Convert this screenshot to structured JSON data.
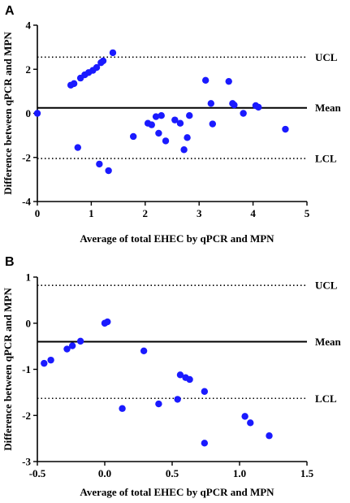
{
  "chart_data": [
    {
      "type": "scatter",
      "panel": "A",
      "xlabel": "Average of total EHEC by qPCR and MPN",
      "ylabel": "Difference between qPCR and MPN",
      "xlim": [
        0,
        5
      ],
      "ylim": [
        -4,
        4
      ],
      "xticks": [
        "0",
        "1",
        "2",
        "3",
        "4",
        "5"
      ],
      "yticks": [
        "4",
        "2",
        "0",
        "-2",
        "-4"
      ],
      "xtick_values": [
        0,
        1,
        2,
        3,
        4,
        5
      ],
      "ytick_values": [
        4,
        2,
        0,
        -2,
        -4
      ],
      "reference_lines": [
        {
          "label": "UCL",
          "y": 2.55,
          "style": "dotted"
        },
        {
          "label": "Mean",
          "y": 0.25,
          "style": "solid"
        },
        {
          "label": "LCL",
          "y": -2.05,
          "style": "dotted"
        }
      ],
      "points": [
        {
          "x": 0.0,
          "y": 0.0
        },
        {
          "x": 0.62,
          "y": 1.28
        },
        {
          "x": 0.68,
          "y": 1.35
        },
        {
          "x": 0.8,
          "y": 1.6
        },
        {
          "x": 0.88,
          "y": 1.75
        },
        {
          "x": 0.95,
          "y": 1.85
        },
        {
          "x": 1.03,
          "y": 1.95
        },
        {
          "x": 1.1,
          "y": 2.08
        },
        {
          "x": 1.18,
          "y": 2.3
        },
        {
          "x": 1.22,
          "y": 2.38
        },
        {
          "x": 1.4,
          "y": 2.75
        },
        {
          "x": 0.75,
          "y": -1.55
        },
        {
          "x": 1.15,
          "y": -2.3
        },
        {
          "x": 1.32,
          "y": -2.6
        },
        {
          "x": 1.78,
          "y": -1.05
        },
        {
          "x": 2.05,
          "y": -0.45
        },
        {
          "x": 2.12,
          "y": -0.52
        },
        {
          "x": 2.2,
          "y": -0.15
        },
        {
          "x": 2.25,
          "y": -0.9
        },
        {
          "x": 2.3,
          "y": -0.1
        },
        {
          "x": 2.38,
          "y": -1.25
        },
        {
          "x": 2.55,
          "y": -0.3
        },
        {
          "x": 2.65,
          "y": -0.45
        },
        {
          "x": 2.72,
          "y": -1.65
        },
        {
          "x": 2.78,
          "y": -1.1
        },
        {
          "x": 2.82,
          "y": -0.1
        },
        {
          "x": 3.12,
          "y": 1.5
        },
        {
          "x": 3.22,
          "y": 0.45
        },
        {
          "x": 3.25,
          "y": -0.48
        },
        {
          "x": 3.55,
          "y": 1.45
        },
        {
          "x": 3.62,
          "y": 0.45
        },
        {
          "x": 3.65,
          "y": 0.38
        },
        {
          "x": 3.82,
          "y": 0.0
        },
        {
          "x": 4.05,
          "y": 0.35
        },
        {
          "x": 4.1,
          "y": 0.28
        },
        {
          "x": 4.6,
          "y": -0.72
        }
      ]
    },
    {
      "type": "scatter",
      "panel": "B",
      "xlabel": "Average of total EHEC by qPCR and MPN",
      "ylabel": "Difference between qPCR and MPN",
      "xlim": [
        -0.5,
        1.5
      ],
      "ylim": [
        -3,
        1
      ],
      "xticks": [
        "-0.5",
        "0.0",
        "0.5",
        "1.0",
        "1.5"
      ],
      "yticks": [
        "1",
        "0",
        "-1",
        "-2",
        "-3"
      ],
      "xtick_values": [
        -0.5,
        0.0,
        0.5,
        1.0,
        1.5
      ],
      "ytick_values": [
        1,
        0,
        -1,
        -2,
        -3
      ],
      "reference_lines": [
        {
          "label": "UCL",
          "y": 0.82,
          "style": "dotted"
        },
        {
          "label": "Mean",
          "y": -0.4,
          "style": "solid"
        },
        {
          "label": "LCL",
          "y": -1.63,
          "style": "dotted"
        }
      ],
      "points": [
        {
          "x": -0.45,
          "y": -0.87
        },
        {
          "x": -0.4,
          "y": -0.8
        },
        {
          "x": -0.28,
          "y": -0.56
        },
        {
          "x": -0.24,
          "y": -0.49
        },
        {
          "x": -0.18,
          "y": -0.39
        },
        {
          "x": 0.0,
          "y": 0.0
        },
        {
          "x": 0.02,
          "y": 0.03
        },
        {
          "x": 0.13,
          "y": -1.85
        },
        {
          "x": 0.29,
          "y": -0.6
        },
        {
          "x": 0.4,
          "y": -1.75
        },
        {
          "x": 0.54,
          "y": -1.65
        },
        {
          "x": 0.56,
          "y": -1.12
        },
        {
          "x": 0.6,
          "y": -1.18
        },
        {
          "x": 0.63,
          "y": -1.22
        },
        {
          "x": 0.74,
          "y": -1.48
        },
        {
          "x": 0.74,
          "y": -2.6
        },
        {
          "x": 1.04,
          "y": -2.02
        },
        {
          "x": 1.08,
          "y": -2.16
        },
        {
          "x": 1.22,
          "y": -2.44
        }
      ]
    }
  ],
  "colors": {
    "point": "#1a1aff",
    "axis": "#000000",
    "reference": "#000000"
  }
}
